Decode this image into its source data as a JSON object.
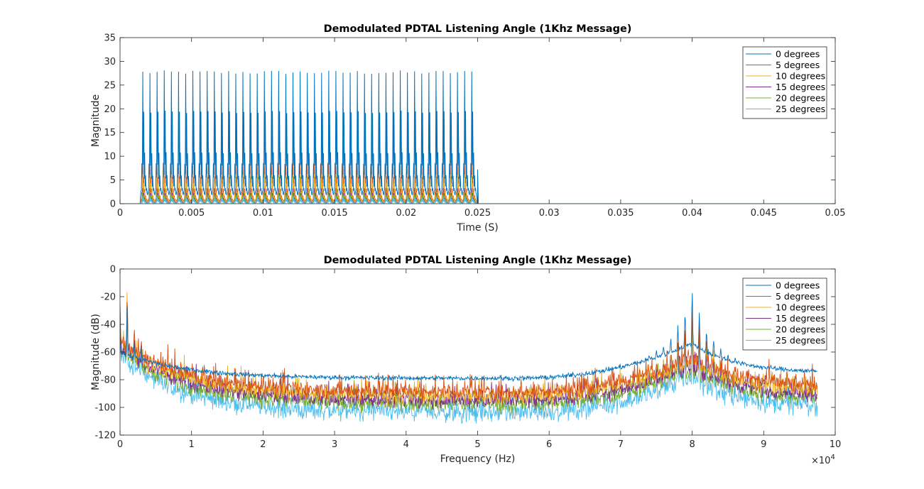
{
  "chart_data": [
    {
      "type": "line",
      "title": "Demodulated PDTAL Listening Angle (1Khz Message)",
      "xlabel": "Time (S)",
      "ylabel": "Magnitude",
      "xlim": [
        0,
        0.05
      ],
      "ylim": [
        0,
        35
      ],
      "xticks": [
        0,
        0.005,
        0.01,
        0.015,
        0.02,
        0.025,
        0.03,
        0.035,
        0.04,
        0.045,
        0.05
      ],
      "xtick_labels": [
        "0",
        "0.005",
        "0.01",
        "0.015",
        "0.02",
        "0.025",
        "0.03",
        "0.035",
        "0.04",
        "0.045",
        "0.05"
      ],
      "yticks": [
        0,
        5,
        10,
        15,
        20,
        25,
        30,
        35
      ],
      "ytick_labels": [
        "0",
        "5",
        "10",
        "15",
        "20",
        "25",
        "30",
        "35"
      ],
      "grid": false,
      "legend_position": "top-right",
      "signal": {
        "pulse_start": 0.0016,
        "pulse_end": 0.025,
        "pulse_period": 0.0005,
        "pulse_count": 47,
        "final_spike_value": 7.2
      },
      "series": [
        {
          "name": "0 degrees",
          "color": "#0072BD",
          "peak": 32.3
        },
        {
          "name": "5 degrees",
          "color": "#D95319",
          "peak": 9.5
        },
        {
          "name": "10 degrees",
          "color": "#EDB120",
          "peak": 7.2
        },
        {
          "name": "15 degrees",
          "color": "#7E2F8E",
          "peak": 3.8
        },
        {
          "name": "20 degrees",
          "color": "#77AC30",
          "peak": 2.9
        },
        {
          "name": "25 degrees",
          "color": "#4DBEEE",
          "peak": 1.8
        }
      ]
    },
    {
      "type": "line",
      "title": "Demodulated PDTAL Listening Angle (1Khz Message)",
      "xlabel": "Frequency (Hz)",
      "ylabel": "Magnitude (dB)",
      "xlim": [
        0,
        100000
      ],
      "ylim": [
        -120,
        0
      ],
      "xticks": [
        0,
        10000,
        20000,
        30000,
        40000,
        50000,
        60000,
        70000,
        80000,
        90000,
        100000
      ],
      "xtick_labels": [
        "0",
        "1",
        "2",
        "3",
        "4",
        "5",
        "6",
        "7",
        "8",
        "9",
        "10"
      ],
      "x_exponent_label": "×10",
      "x_exponent_power": "4",
      "yticks": [
        0,
        -20,
        -40,
        -60,
        -80,
        -100,
        -120
      ],
      "ytick_labels": [
        "0",
        "-20",
        "-40",
        "-60",
        "-80",
        "-100",
        "-120"
      ],
      "grid": false,
      "legend_position": "top-right",
      "x_data_max": 97500,
      "resonance_hz": 80000,
      "series": [
        {
          "name": "0 degrees",
          "color": "#0072BD",
          "low_db": -60,
          "trough_db": -79,
          "peak_db": -9,
          "noise_db": 1.2
        },
        {
          "name": "5 degrees",
          "color": "#D95319",
          "low_db": -52,
          "trough_db": -89,
          "peak_db": -20,
          "noise_db": 4
        },
        {
          "name": "10 degrees",
          "color": "#EDB120",
          "low_db": -55,
          "trough_db": -92,
          "peak_db": -22,
          "noise_db": 4
        },
        {
          "name": "15 degrees",
          "color": "#7E2F8E",
          "low_db": -57,
          "trough_db": -95,
          "peak_db": -25,
          "noise_db": 4
        },
        {
          "name": "20 degrees",
          "color": "#77AC30",
          "low_db": -59,
          "trough_db": -98,
          "peak_db": -27,
          "noise_db": 4
        },
        {
          "name": "25 degrees",
          "color": "#4DBEEE",
          "low_db": -63,
          "trough_db": -104,
          "peak_db": -30,
          "noise_db": 5
        }
      ]
    }
  ]
}
